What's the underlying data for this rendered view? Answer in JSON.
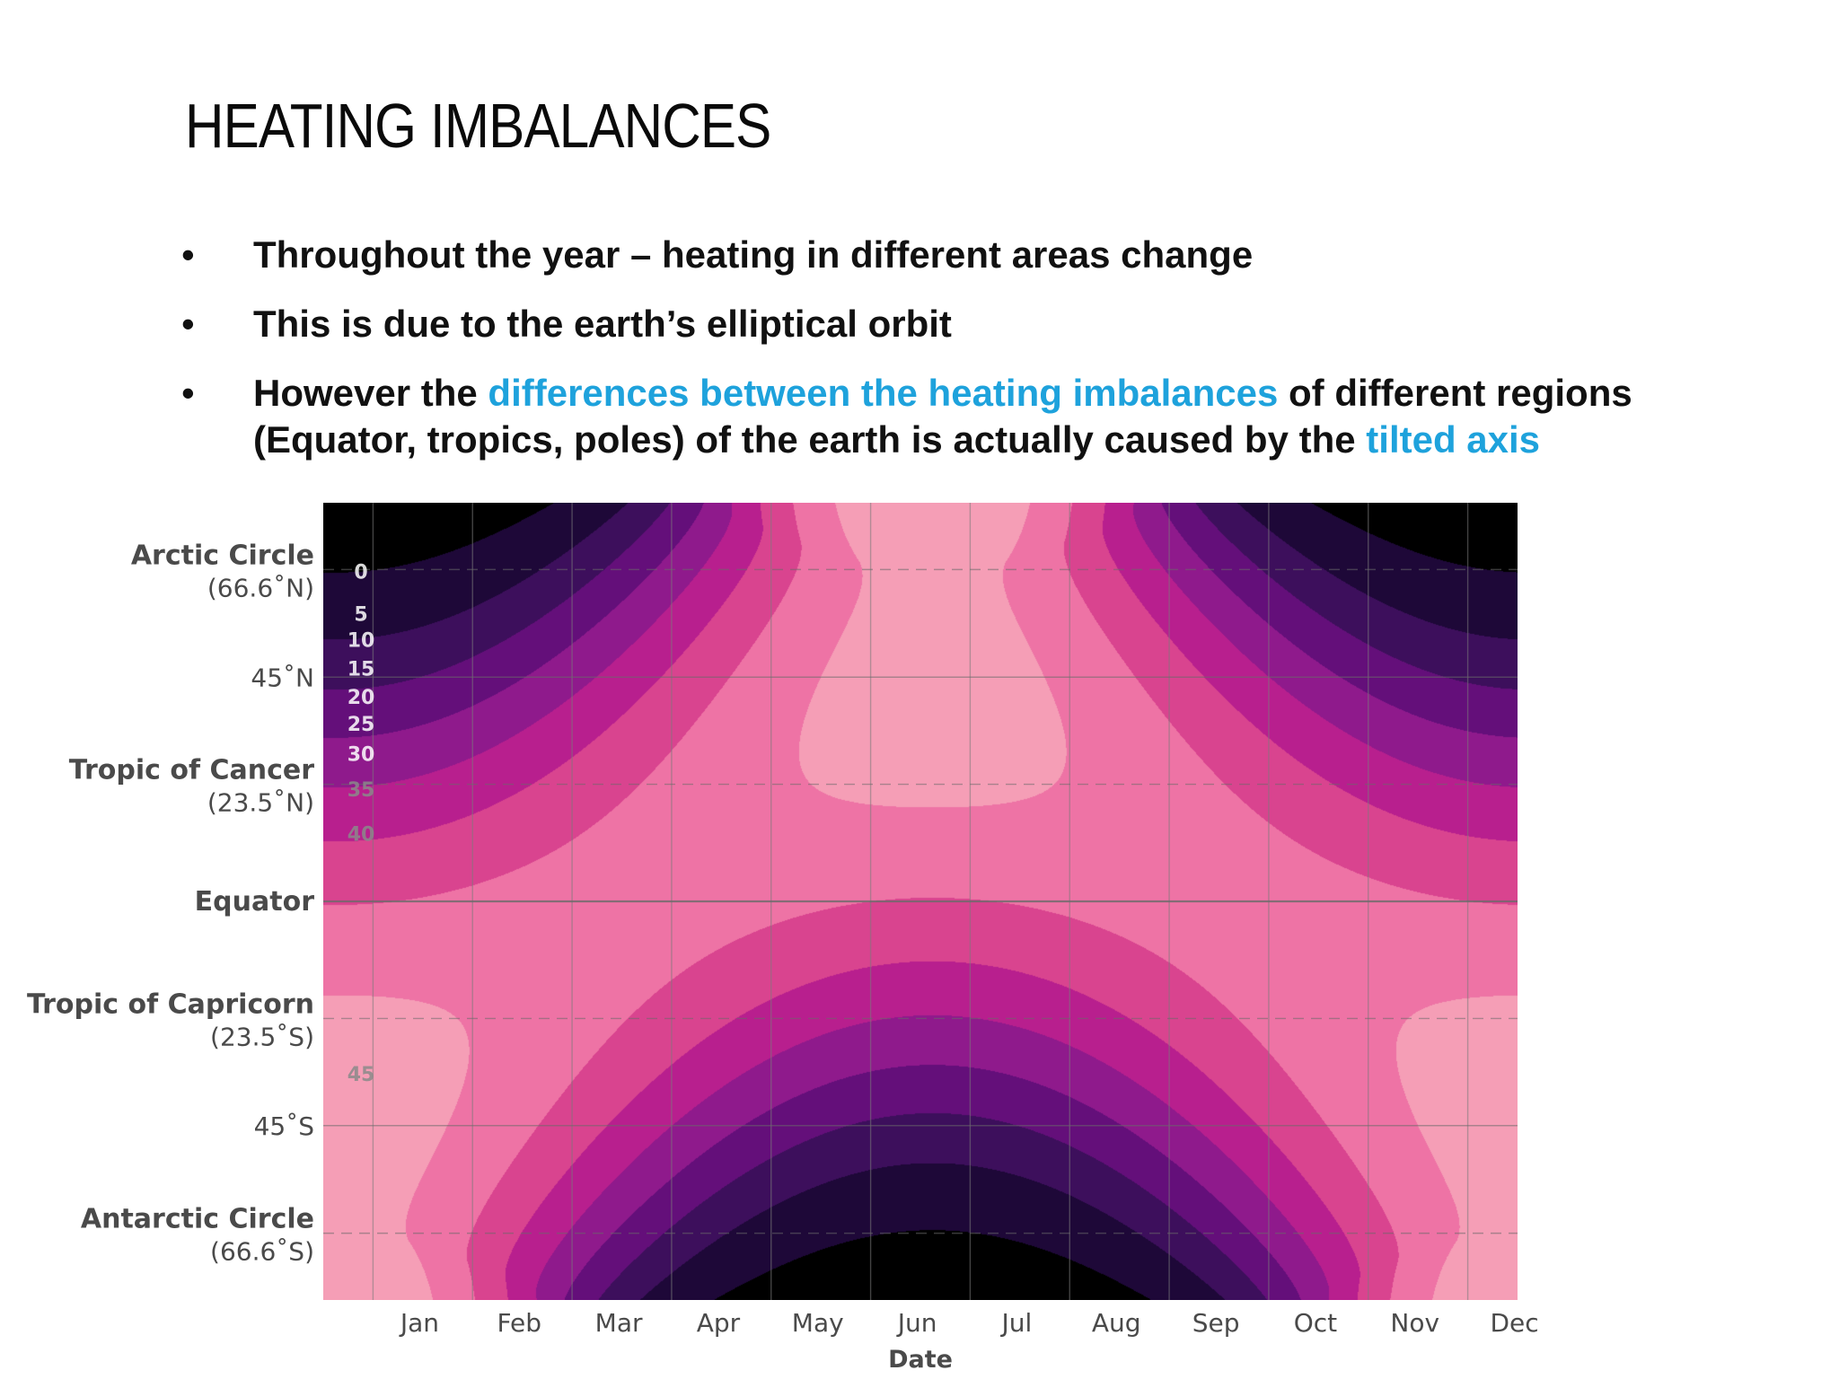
{
  "slide": {
    "title": "HEATING IMBALANCES",
    "bullets": [
      {
        "parts": [
          {
            "text": "Throughout the year – heating in different areas change",
            "highlight": false
          }
        ]
      },
      {
        "parts": [
          {
            "text": "This is due to the earth’s elliptical orbit",
            "highlight": false
          }
        ]
      },
      {
        "parts": [
          {
            "text": "However the ",
            "highlight": false
          },
          {
            "text": "differences between the heating imbalances",
            "highlight": true
          },
          {
            "text": " of different regions (Equator, tropics, poles) of the earth is actually caused by the ",
            "highlight": false
          },
          {
            "text": "tilted axis",
            "highlight": true
          }
        ]
      }
    ],
    "bullet_symbol": "•",
    "highlight_color": "#1ea2dc"
  },
  "chart_data": {
    "type": "heatmap",
    "xlabel": "Date",
    "months": [
      "Jan",
      "Feb",
      "Mar",
      "Apr",
      "May",
      "Jun",
      "Jul",
      "Aug",
      "Sep",
      "Oct",
      "Nov",
      "Dec"
    ],
    "latitude_labels": [
      {
        "lat": 66.6,
        "name": "Arctic Circle",
        "sub": "(66.6˚N)",
        "line": "dashed"
      },
      {
        "lat": 45,
        "name": "",
        "sub": "45˚N",
        "line": "solid"
      },
      {
        "lat": 23.5,
        "name": "Tropic of Cancer",
        "sub": "(23.5˚N)",
        "line": "dashed"
      },
      {
        "lat": 0,
        "name": "Equator",
        "sub": "",
        "line": "solid"
      },
      {
        "lat": -23.5,
        "name": "Tropic of Capricorn",
        "sub": "(23.5˚S)",
        "line": "dashed"
      },
      {
        "lat": -45,
        "name": "",
        "sub": "45˚S",
        "line": "solid"
      },
      {
        "lat": -66.6,
        "name": "Antarctic Circle",
        "sub": "(66.6˚S)",
        "line": "dashed"
      }
    ],
    "contour_labels": [
      "0",
      "5",
      "10",
      "15",
      "20",
      "25",
      "30",
      "35",
      "40",
      "45"
    ],
    "contour_levels": [
      0,
      5,
      10,
      15,
      20,
      25,
      30,
      35,
      40,
      45
    ],
    "colors": [
      "#000000",
      "#1e0838",
      "#3d0f5c",
      "#640f7a",
      "#8f1a8c",
      "#b81f8e",
      "#d9448f",
      "#ee73a5",
      "#f59eb6",
      "#f9bfc4",
      "#fcd9d9",
      "#fde8e8"
    ],
    "ylim": [
      -80,
      80
    ],
    "grid": true
  }
}
